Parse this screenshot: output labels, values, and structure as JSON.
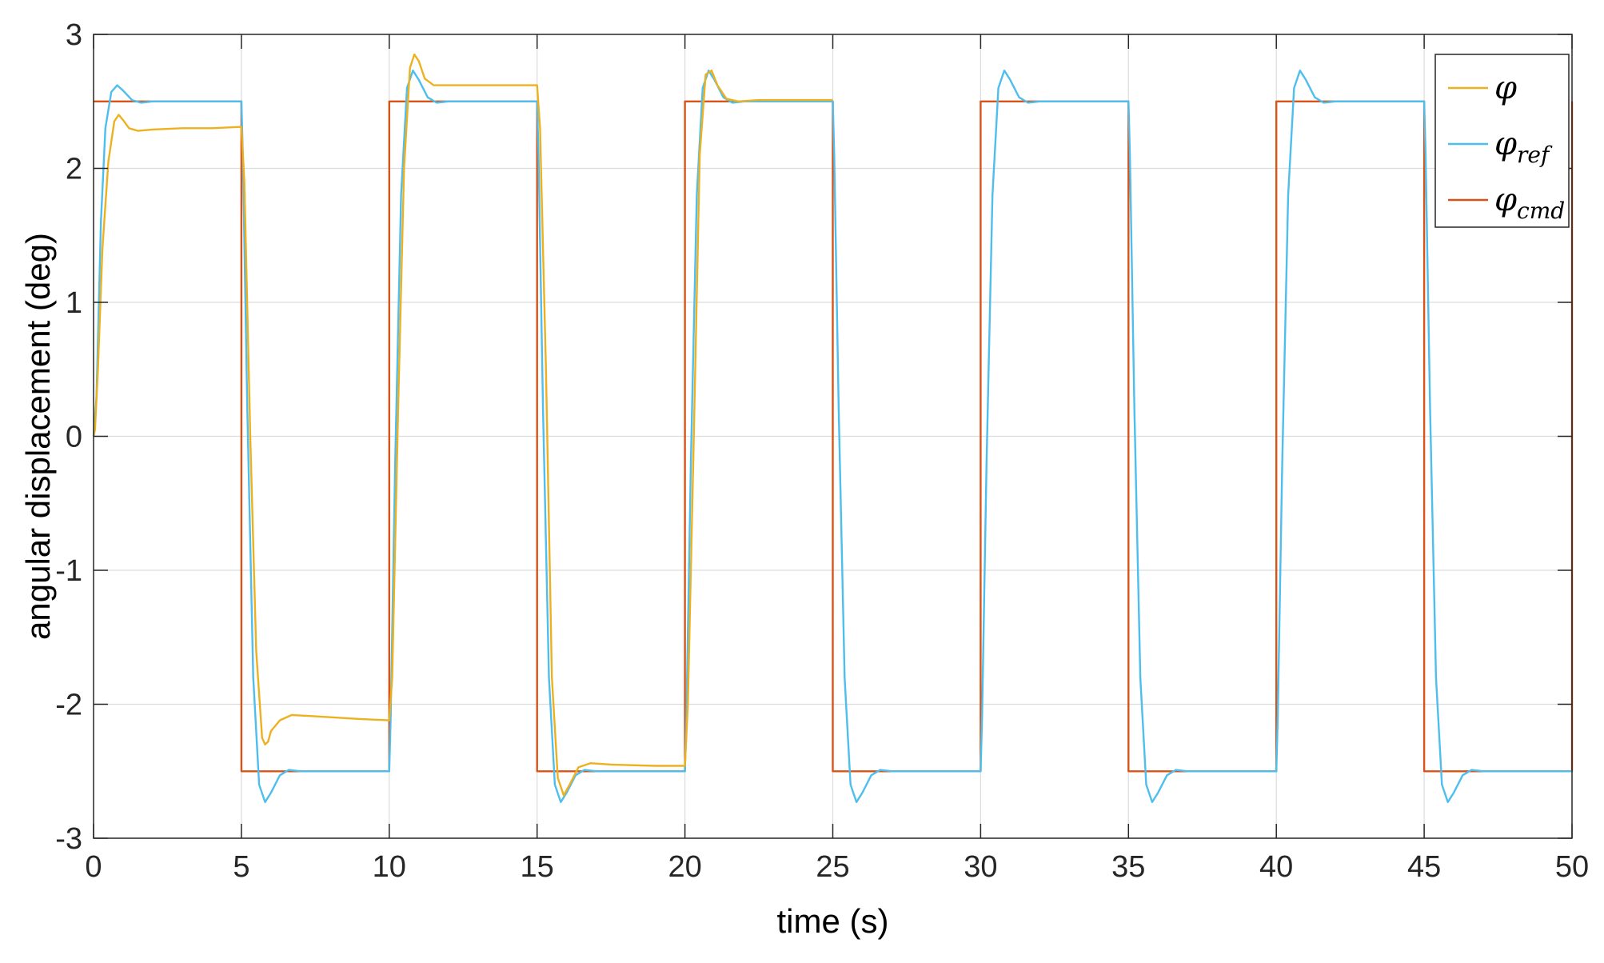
{
  "chart_data": {
    "type": "line",
    "title": "",
    "xlabel": "time (s)",
    "ylabel": "angular displacement (deg)",
    "xlim": [
      0,
      50
    ],
    "ylim": [
      -3,
      3
    ],
    "xticks": [
      0,
      5,
      10,
      15,
      20,
      25,
      30,
      35,
      40,
      45,
      50
    ],
    "yticks": [
      -3,
      -2,
      -1,
      0,
      1,
      2,
      3
    ],
    "xtick_labels": [
      "0",
      "5",
      "10",
      "15",
      "20",
      "25",
      "30",
      "35",
      "40",
      "45",
      "50"
    ],
    "ytick_labels": [
      "-3",
      "-2",
      "-1",
      "0",
      "1",
      "2",
      "3"
    ],
    "grid": true,
    "legend_position": "top-right",
    "series": [
      {
        "name": "φ",
        "color": "#EDB120",
        "x": [
          0,
          0.05,
          0.15,
          0.3,
          0.5,
          0.7,
          0.85,
          1.0,
          1.2,
          1.5,
          2.0,
          3.0,
          4.0,
          5.0,
          5.1,
          5.3,
          5.5,
          5.7,
          5.8,
          5.9,
          6.0,
          6.3,
          6.7,
          7.5,
          9.0,
          10.0,
          10.1,
          10.3,
          10.5,
          10.7,
          10.85,
          11.0,
          11.2,
          11.5,
          12,
          13,
          14,
          15.0,
          15.1,
          15.3,
          15.5,
          15.7,
          15.9,
          16.1,
          16.4,
          16.8,
          17.5,
          19,
          20.0,
          20.1,
          20.3,
          20.5,
          20.7,
          20.9,
          21.1,
          21.4,
          21.8,
          22.5,
          24,
          25.0
        ],
        "y": [
          0,
          0.05,
          0.5,
          1.4,
          2.05,
          2.35,
          2.4,
          2.36,
          2.3,
          2.28,
          2.29,
          2.3,
          2.3,
          2.31,
          1.9,
          0.0,
          -1.6,
          -2.25,
          -2.3,
          -2.28,
          -2.2,
          -2.12,
          -2.08,
          -2.09,
          -2.11,
          -2.12,
          -1.8,
          0.2,
          2.0,
          2.75,
          2.85,
          2.8,
          2.67,
          2.62,
          2.62,
          2.62,
          2.62,
          2.62,
          2.3,
          0.5,
          -1.8,
          -2.55,
          -2.68,
          -2.6,
          -2.47,
          -2.44,
          -2.45,
          -2.46,
          -2.46,
          -2.0,
          0.0,
          2.1,
          2.7,
          2.73,
          2.62,
          2.52,
          2.5,
          2.51,
          2.51,
          2.51
        ]
      },
      {
        "name": "φref",
        "color": "#4DBEEE",
        "x": [
          0,
          0.1,
          0.25,
          0.4,
          0.6,
          0.8,
          1.0,
          1.3,
          1.6,
          2.0,
          5.0,
          5.05,
          5.2,
          5.4,
          5.6,
          5.8,
          6.0,
          6.3,
          6.6,
          7.0,
          10.0,
          10.05,
          10.2,
          10.4,
          10.6,
          10.8,
          11.0,
          11.3,
          11.6,
          12.0,
          15.0,
          15.05,
          15.2,
          15.4,
          15.6,
          15.8,
          16.0,
          16.3,
          16.6,
          17.0,
          20.0,
          20.05,
          20.2,
          20.4,
          20.6,
          20.8,
          21.0,
          21.3,
          21.6,
          22.0,
          25.0,
          25.05,
          25.2,
          25.4,
          25.6,
          25.8,
          26.0,
          26.3,
          26.6,
          27.0,
          30.0,
          30.05,
          30.2,
          30.4,
          30.6,
          30.8,
          31.0,
          31.3,
          31.6,
          32.0,
          35.0,
          35.05,
          35.2,
          35.4,
          35.6,
          35.8,
          36.0,
          36.3,
          36.6,
          37.0,
          40.0,
          40.05,
          40.2,
          40.4,
          40.6,
          40.8,
          41.0,
          41.3,
          41.6,
          42.0,
          45.0,
          45.05,
          45.2,
          45.4,
          45.6,
          45.8,
          46.0,
          46.3,
          46.6,
          47.0,
          50.0
        ],
        "y": [
          0,
          0.3,
          1.6,
          2.3,
          2.57,
          2.62,
          2.58,
          2.51,
          2.49,
          2.5,
          2.5,
          2.1,
          0.2,
          -1.8,
          -2.6,
          -2.73,
          -2.66,
          -2.53,
          -2.49,
          -2.5,
          -2.5,
          -2.1,
          -0.2,
          1.8,
          2.6,
          2.73,
          2.66,
          2.53,
          2.49,
          2.5,
          2.5,
          2.1,
          0.2,
          -1.8,
          -2.6,
          -2.73,
          -2.66,
          -2.53,
          -2.49,
          -2.5,
          -2.5,
          -2.1,
          -0.2,
          1.8,
          2.6,
          2.73,
          2.66,
          2.53,
          2.49,
          2.5,
          2.5,
          2.1,
          0.2,
          -1.8,
          -2.6,
          -2.73,
          -2.66,
          -2.53,
          -2.49,
          -2.5,
          -2.5,
          -2.1,
          -0.2,
          1.8,
          2.6,
          2.73,
          2.66,
          2.53,
          2.49,
          2.5,
          2.5,
          2.1,
          0.2,
          -1.8,
          -2.6,
          -2.73,
          -2.66,
          -2.53,
          -2.49,
          -2.5,
          -2.5,
          -2.1,
          -0.2,
          1.8,
          2.6,
          2.73,
          2.66,
          2.53,
          2.49,
          2.5,
          2.5,
          2.1,
          0.2,
          -1.8,
          -2.6,
          -2.73,
          -2.66,
          -2.53,
          -2.49,
          -2.5,
          -2.5
        ]
      },
      {
        "name": "φcmd",
        "color": "#D95319",
        "x": [
          0,
          5,
          5,
          10,
          10,
          15,
          15,
          20,
          20,
          25,
          25,
          30,
          30,
          35,
          35,
          40,
          40,
          45,
          45,
          50,
          50
        ],
        "y": [
          2.5,
          2.5,
          -2.5,
          -2.5,
          2.5,
          2.5,
          -2.5,
          -2.5,
          2.5,
          2.5,
          -2.5,
          -2.5,
          2.5,
          2.5,
          -2.5,
          -2.5,
          2.5,
          2.5,
          -2.5,
          -2.5,
          2.5
        ]
      }
    ],
    "legend": [
      {
        "symbol": "φ",
        "sub": ""
      },
      {
        "symbol": "φ",
        "sub": "ref"
      },
      {
        "symbol": "φ",
        "sub": "cmd"
      }
    ]
  }
}
